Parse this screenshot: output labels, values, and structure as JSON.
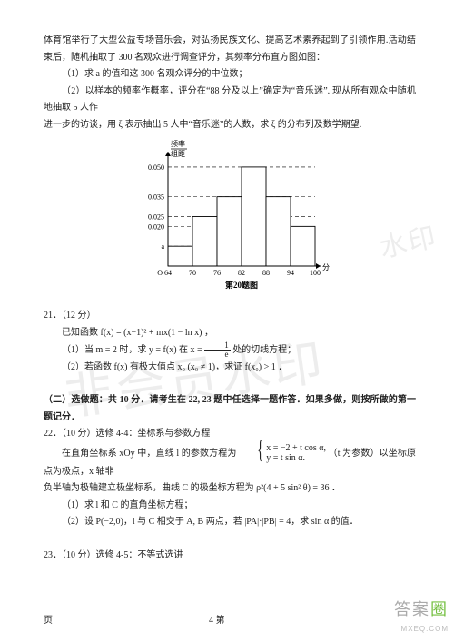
{
  "intro": {
    "line1": "体育馆举行了大型公益专场音乐会，对弘扬民族文化、提高艺术素养起到了引领作用.活动结束后，随机抽取了 300 名观众进行调查评分，其频率分布直方图如图：",
    "q1": "（1）求 a 的值和这 300 名观众评分的中位数；",
    "q2a": "（2）以样本的频率作概率，评分在“88 分及以上”确定为“音乐迷”. 现从所有观众中随机地抽取 5 人作",
    "q2b": "进一步的访谈，用 ξ 表示抽出 5 人中“音乐迷”的人数，求 ξ 的分布列及数学期望."
  },
  "chart": {
    "type": "histogram",
    "x_ticks": [
      64,
      70,
      76,
      82,
      88,
      94,
      100
    ],
    "x_label": "分",
    "y_ticks_labels": [
      "a",
      "0.020",
      "0.025",
      "0.035",
      "0.050"
    ],
    "y_ticks_values": [
      0.01,
      0.02,
      0.025,
      0.035,
      0.05
    ],
    "y_axis_title_top": "频率",
    "y_axis_title_bottom": "组距",
    "bins": [
      {
        "lo": 64,
        "hi": 70,
        "h": 0.01
      },
      {
        "lo": 70,
        "hi": 76,
        "h": 0.025
      },
      {
        "lo": 76,
        "hi": 82,
        "h": 0.035
      },
      {
        "lo": 82,
        "hi": 88,
        "h": 0.05
      },
      {
        "lo": 88,
        "hi": 94,
        "h": 0.035
      },
      {
        "lo": 94,
        "hi": 100,
        "h": 0.02
      }
    ],
    "caption": "第20题图",
    "bar_fill": "#ffffff",
    "bar_stroke": "#000000",
    "grid_dash": "4 3",
    "grid_color": "#000000",
    "axis_color": "#000000",
    "bg": "#ffffff",
    "font_size": 8
  },
  "q21": {
    "num": "21．（12 分）",
    "given_pre": "已知函数 ",
    "given_fx": "f(x) = (x−1)² + mx(1 − ln x)",
    "given_post": "，",
    "part1_pre": "（1）当 m = 2 时，求 y = f(x) 在 x = ",
    "part1_frac_num": "1",
    "part1_frac_den": "e",
    "part1_post": " 处的切线方程；",
    "part2": "（2）若函数 f(x) 有极大值点 x₀ (x₀ ≠ 1)，求证 f(x₀) > 1 ．"
  },
  "sec2": {
    "title": "（二）选做题：共 10 分．请考生在 22, 23 题中任选择一题作答．如果多做，则按所做的第一题记分．",
    "q22num": "22．（10 分）选修 4-4：坐标系与参数方程",
    "q22l1a": "在直角坐标系 xOy 中，直线 l 的参数方程为",
    "q22sys_line1": "x = −2 + t cos α,",
    "q22sys_line2": "y =  t sin α.",
    "q22l1b": "（t 为参数）以坐标原点为极点，x 轴非",
    "q22l2": "负半轴为极轴建立极坐标系，曲线 C 的极坐标方程为 ρ²(4 + 5 sin² θ) = 36 ．",
    "q22p1": "（1）求 l 和 C 的直角坐标方程；",
    "q22p2": "（2）设 P(−2,0)，l 与 C 相交于 A, B 两点，若 |PA|·|PB| = 4，求 sin α 的值．",
    "q23num": "23．（10 分）选修 4-5：不等式选讲"
  },
  "watermarks": {
    "wm1": "非会员水印",
    "wm2": "水印"
  },
  "footer": {
    "left": "页",
    "center": "4  第"
  },
  "corner": {
    "line1a": "答案",
    "line1b": "圈",
    "line2": "MXEQ.COM"
  }
}
